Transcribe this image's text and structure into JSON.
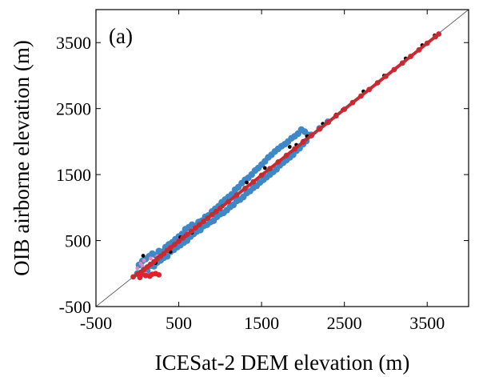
{
  "chart_data": {
    "type": "scatter",
    "panel_label": "(a)",
    "xlabel": "ICESat-2 DEM elevation (m)",
    "ylabel": "OIB airborne elevation (m)",
    "xlim": [
      -500,
      4000
    ],
    "ylim": [
      -500,
      4000
    ],
    "xticks": [
      -500,
      500,
      1500,
      2500,
      3500
    ],
    "yticks": [
      -500,
      500,
      1500,
      2500,
      3500
    ],
    "xtick_labels": [
      "-500",
      "500",
      "1500",
      "2500",
      "3500"
    ],
    "ytick_labels": [
      "-500",
      "500",
      "1500",
      "2500",
      "3500"
    ],
    "grid": false,
    "reference_line": {
      "x": [
        -500,
        4000
      ],
      "y": [
        -500,
        4000
      ],
      "color": "#555555"
    },
    "series": [
      {
        "color": "#3f88c5",
        "marker": "o",
        "points": [
          [
            0,
            0
          ],
          [
            20,
            130
          ],
          [
            40,
            -20
          ],
          [
            60,
            190
          ],
          [
            80,
            60
          ],
          [
            100,
            220
          ],
          [
            120,
            40
          ],
          [
            140,
            260
          ],
          [
            160,
            120
          ],
          [
            180,
            300
          ],
          [
            200,
            110
          ],
          [
            220,
            280
          ],
          [
            240,
            170
          ],
          [
            260,
            340
          ],
          [
            280,
            200
          ],
          [
            300,
            330
          ],
          [
            320,
            240
          ],
          [
            340,
            400
          ],
          [
            360,
            260
          ],
          [
            380,
            440
          ],
          [
            400,
            330
          ],
          [
            420,
            470
          ],
          [
            440,
            360
          ],
          [
            460,
            520
          ],
          [
            480,
            400
          ],
          [
            500,
            560
          ],
          [
            520,
            430
          ],
          [
            540,
            600
          ],
          [
            560,
            470
          ],
          [
            580,
            670
          ],
          [
            600,
            500
          ],
          [
            620,
            700
          ],
          [
            640,
            560
          ],
          [
            660,
            740
          ],
          [
            680,
            600
          ],
          [
            700,
            720
          ],
          [
            720,
            640
          ],
          [
            740,
            780
          ],
          [
            760,
            660
          ],
          [
            780,
            800
          ],
          [
            800,
            720
          ],
          [
            820,
            860
          ],
          [
            840,
            740
          ],
          [
            860,
            880
          ],
          [
            880,
            780
          ],
          [
            900,
            940
          ],
          [
            920,
            800
          ],
          [
            940,
            980
          ],
          [
            960,
            860
          ],
          [
            980,
            1020
          ],
          [
            1000,
            900
          ],
          [
            1020,
            1080
          ],
          [
            1040,
            920
          ],
          [
            1060,
            1120
          ],
          [
            1080,
            960
          ],
          [
            1100,
            1160
          ],
          [
            1120,
            1010
          ],
          [
            1140,
            1200
          ],
          [
            1160,
            1040
          ],
          [
            1180,
            1270
          ],
          [
            1200,
            1100
          ],
          [
            1220,
            1310
          ],
          [
            1240,
            1120
          ],
          [
            1260,
            1370
          ],
          [
            1280,
            1160
          ],
          [
            1300,
            1420
          ],
          [
            1320,
            1220
          ],
          [
            1340,
            1450
          ],
          [
            1360,
            1250
          ],
          [
            1380,
            1500
          ],
          [
            1400,
            1300
          ],
          [
            1420,
            1560
          ],
          [
            1440,
            1330
          ],
          [
            1460,
            1600
          ],
          [
            1480,
            1380
          ],
          [
            1500,
            1650
          ],
          [
            1520,
            1420
          ],
          [
            1540,
            1700
          ],
          [
            1560,
            1460
          ],
          [
            1580,
            1760
          ],
          [
            1600,
            1500
          ],
          [
            1620,
            1800
          ],
          [
            1640,
            1540
          ],
          [
            1660,
            1850
          ],
          [
            1680,
            1580
          ],
          [
            1700,
            1890
          ],
          [
            1720,
            1640
          ],
          [
            1740,
            1930
          ],
          [
            1760,
            1680
          ],
          [
            1780,
            1960
          ],
          [
            1800,
            1720
          ],
          [
            1820,
            2000
          ],
          [
            1840,
            1760
          ],
          [
            1860,
            2050
          ],
          [
            1880,
            1800
          ],
          [
            1900,
            2080
          ],
          [
            1920,
            1860
          ],
          [
            1940,
            2120
          ],
          [
            1960,
            1900
          ],
          [
            1980,
            2180
          ],
          [
            2000,
            1960
          ],
          [
            2020,
            2150
          ],
          [
            2040,
            2010
          ],
          [
            2060,
            2100
          ],
          [
            2100,
            2100
          ],
          [
            2200,
            2200
          ],
          [
            2300,
            2300
          ]
        ]
      },
      {
        "color": "#d58bc4",
        "marker": "o",
        "points": [
          [
            0,
            80
          ],
          [
            40,
            150
          ],
          [
            80,
            200
          ],
          [
            120,
            100
          ],
          [
            160,
            230
          ],
          [
            200,
            180
          ],
          [
            240,
            260
          ],
          [
            100,
            0
          ],
          [
            60,
            120
          ]
        ]
      },
      {
        "color": "#000000",
        "marker": "o",
        "points": [
          [
            70,
            270
          ],
          [
            220,
            160
          ],
          [
            250,
            240
          ],
          [
            400,
            330
          ],
          [
            520,
            550
          ],
          [
            580,
            570
          ],
          [
            660,
            620
          ],
          [
            760,
            750
          ],
          [
            1030,
            1020
          ],
          [
            1320,
            1380
          ],
          [
            1540,
            1600
          ],
          [
            1840,
            1920
          ],
          [
            1920,
            1950
          ],
          [
            2000,
            2010
          ],
          [
            2050,
            2080
          ],
          [
            2240,
            2270
          ],
          [
            2400,
            2410
          ],
          [
            2480,
            2480
          ],
          [
            2730,
            2760
          ],
          [
            2980,
            3000
          ],
          [
            3240,
            3260
          ],
          [
            3440,
            3460
          ],
          [
            3590,
            3610
          ]
        ]
      },
      {
        "color": "#e0222b",
        "marker": "o",
        "points": [
          [
            -50,
            -50
          ],
          [
            0,
            -10
          ],
          [
            40,
            20
          ],
          [
            80,
            60
          ],
          [
            120,
            100
          ],
          [
            160,
            140
          ],
          [
            200,
            180
          ],
          [
            240,
            220
          ],
          [
            280,
            260
          ],
          [
            320,
            300
          ],
          [
            360,
            350
          ],
          [
            400,
            390
          ],
          [
            450,
            440
          ],
          [
            500,
            490
          ],
          [
            550,
            540
          ],
          [
            600,
            590
          ],
          [
            650,
            640
          ],
          [
            700,
            690
          ],
          [
            750,
            740
          ],
          [
            800,
            790
          ],
          [
            850,
            840
          ],
          [
            900,
            890
          ],
          [
            950,
            940
          ],
          [
            1000,
            990
          ],
          [
            1100,
            1090
          ],
          [
            1200,
            1190
          ],
          [
            1300,
            1290
          ],
          [
            1400,
            1390
          ],
          [
            1500,
            1490
          ],
          [
            1600,
            1590
          ],
          [
            1700,
            1690
          ],
          [
            1800,
            1790
          ],
          [
            1900,
            1890
          ],
          [
            2000,
            1990
          ],
          [
            2100,
            2090
          ],
          [
            2200,
            2190
          ],
          [
            2300,
            2290
          ],
          [
            2400,
            2390
          ],
          [
            2500,
            2490
          ],
          [
            2600,
            2590
          ],
          [
            2700,
            2690
          ],
          [
            2800,
            2790
          ],
          [
            2900,
            2890
          ],
          [
            3000,
            2990
          ],
          [
            3100,
            3090
          ],
          [
            3200,
            3190
          ],
          [
            3300,
            3290
          ],
          [
            3400,
            3390
          ],
          [
            3500,
            3490
          ],
          [
            3600,
            3590
          ],
          [
            3640,
            3630
          ],
          [
            180,
            -10
          ],
          [
            220,
            0
          ],
          [
            100,
            -30
          ],
          [
            260,
            -20
          ],
          [
            150,
            -40
          ],
          [
            50,
            0
          ],
          [
            30,
            -60
          ]
        ]
      }
    ]
  }
}
